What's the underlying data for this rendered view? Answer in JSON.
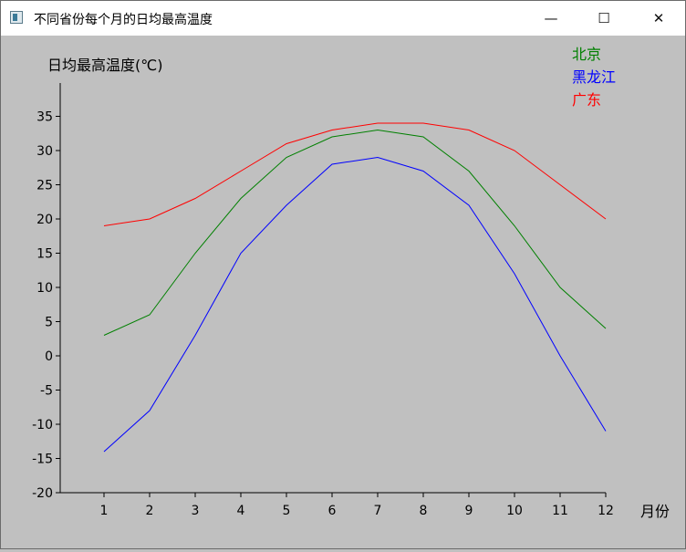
{
  "window": {
    "title": "不同省份每个月的日均最高温度",
    "controls": {
      "minimize": "—",
      "maximize": "☐",
      "close": "✕"
    }
  },
  "colors": {
    "background": "#c0c0c0"
  },
  "chart_data": {
    "type": "line",
    "title": "",
    "xlabel": "月份",
    "ylabel": "日均最高温度(℃)",
    "x": [
      1,
      2,
      3,
      4,
      5,
      6,
      7,
      8,
      9,
      10,
      11,
      12
    ],
    "ylim": [
      -20,
      40
    ],
    "yticks": [
      -20,
      -15,
      -10,
      -5,
      0,
      5,
      10,
      15,
      20,
      25,
      30,
      35
    ],
    "grid": false,
    "legend_position": "top-right",
    "series": [
      {
        "name": "北京",
        "color": "#008000",
        "values": [
          3,
          6,
          15,
          23,
          29,
          32,
          33,
          32,
          27,
          19,
          10,
          4
        ]
      },
      {
        "name": "黑龙江",
        "color": "#0000ff",
        "values": [
          -14,
          -8,
          3,
          15,
          22,
          28,
          29,
          27,
          22,
          12,
          0,
          -11
        ]
      },
      {
        "name": "广东",
        "color": "#ff0000",
        "values": [
          19,
          20,
          23,
          27,
          31,
          33,
          34,
          34,
          33,
          30,
          25,
          20
        ]
      }
    ]
  }
}
